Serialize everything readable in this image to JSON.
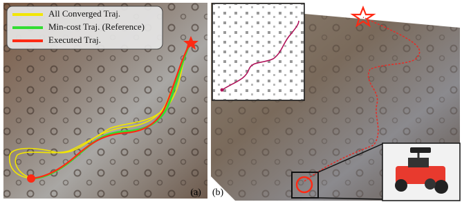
{
  "panel_a": {
    "legend": [
      {
        "label": "All Converged Traj.",
        "color": "#f2e600"
      },
      {
        "label": "Min-cost Traj. (Reference)",
        "color": "#33dd33"
      },
      {
        "label": "Executed Traj.",
        "color": "#ff2a14"
      }
    ],
    "label": "(a)"
  },
  "panel_b": {
    "label": "(b)"
  }
}
